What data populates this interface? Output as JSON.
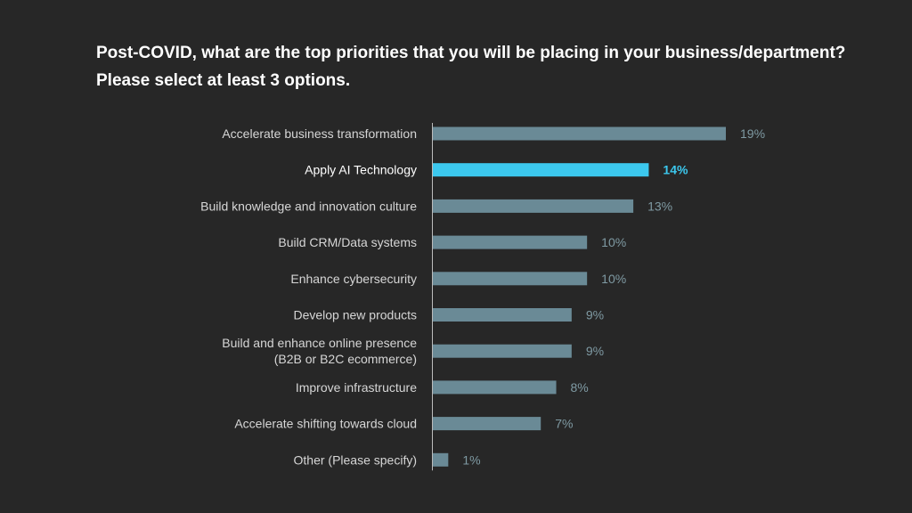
{
  "title_line1": "Post-COVID, what are the top priorities that you will be placing in your business/department?",
  "title_line2": "Please select at least 3 options.",
  "colors": {
    "background": "#272727",
    "bar": "#6a8a96",
    "highlight_bar": "#3cc8ee",
    "value_text": "#7f9aa3",
    "highlight_value_text": "#3cc8ee",
    "axis": "#bcbcbc"
  },
  "chart_data": {
    "type": "bar",
    "orientation": "horizontal",
    "categories": [
      [
        "Accelerate business transformation"
      ],
      [
        "Apply AI Technology"
      ],
      [
        "Build knowledge and innovation culture"
      ],
      [
        "Build CRM/Data systems"
      ],
      [
        "Enhance cybersecurity"
      ],
      [
        "Develop new products"
      ],
      [
        "Build and enhance online presence",
        "(B2B or B2C ecommerce)"
      ],
      [
        "Improve infrastructure"
      ],
      [
        "Accelerate shifting towards cloud"
      ],
      [
        "Other (Please specify)"
      ]
    ],
    "values": [
      19,
      14,
      13,
      10,
      10,
      9,
      9,
      8,
      7,
      1
    ],
    "value_labels": [
      "19%",
      "14%",
      "13%",
      "10%",
      "10%",
      "9%",
      "9%",
      "8%",
      "7%",
      "1%"
    ],
    "highlight_index": 1,
    "xlim": [
      0,
      19
    ],
    "grid": false,
    "legend": false
  }
}
